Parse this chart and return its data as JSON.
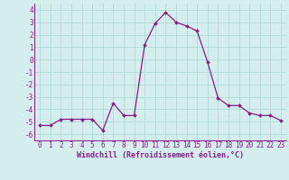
{
  "x": [
    0,
    1,
    2,
    3,
    4,
    5,
    6,
    7,
    8,
    9,
    10,
    11,
    12,
    13,
    14,
    15,
    16,
    17,
    18,
    19,
    20,
    21,
    22,
    23
  ],
  "y": [
    -5.3,
    -5.3,
    -4.8,
    -4.8,
    -4.8,
    -4.8,
    -5.7,
    -3.5,
    -4.5,
    -4.5,
    1.2,
    2.9,
    3.8,
    3.0,
    2.7,
    2.3,
    -0.2,
    -3.1,
    -3.7,
    -3.7,
    -4.3,
    -4.5,
    -4.5,
    -4.9
  ],
  "line_color": "#8b1a8b",
  "marker": "D",
  "markersize": 2.0,
  "linewidth": 0.9,
  "xlabel": "Windchill (Refroidissement éolien,°C)",
  "xlabel_fontsize": 6.0,
  "bg_color": "#d4eeee",
  "grid_color": "#b0d8d8",
  "tick_label_color": "#8b1a8b",
  "ylim": [
    -6.5,
    4.5
  ],
  "xlim": [
    -0.5,
    23.5
  ],
  "yticks": [
    -6,
    -5,
    -4,
    -3,
    -2,
    -1,
    0,
    1,
    2,
    3,
    4
  ],
  "xticks": [
    0,
    1,
    2,
    3,
    4,
    5,
    6,
    7,
    8,
    9,
    10,
    11,
    12,
    13,
    14,
    15,
    16,
    17,
    18,
    19,
    20,
    21,
    22,
    23
  ],
  "tick_fontsize": 5.5,
  "xlabel_fontweight": "bold"
}
